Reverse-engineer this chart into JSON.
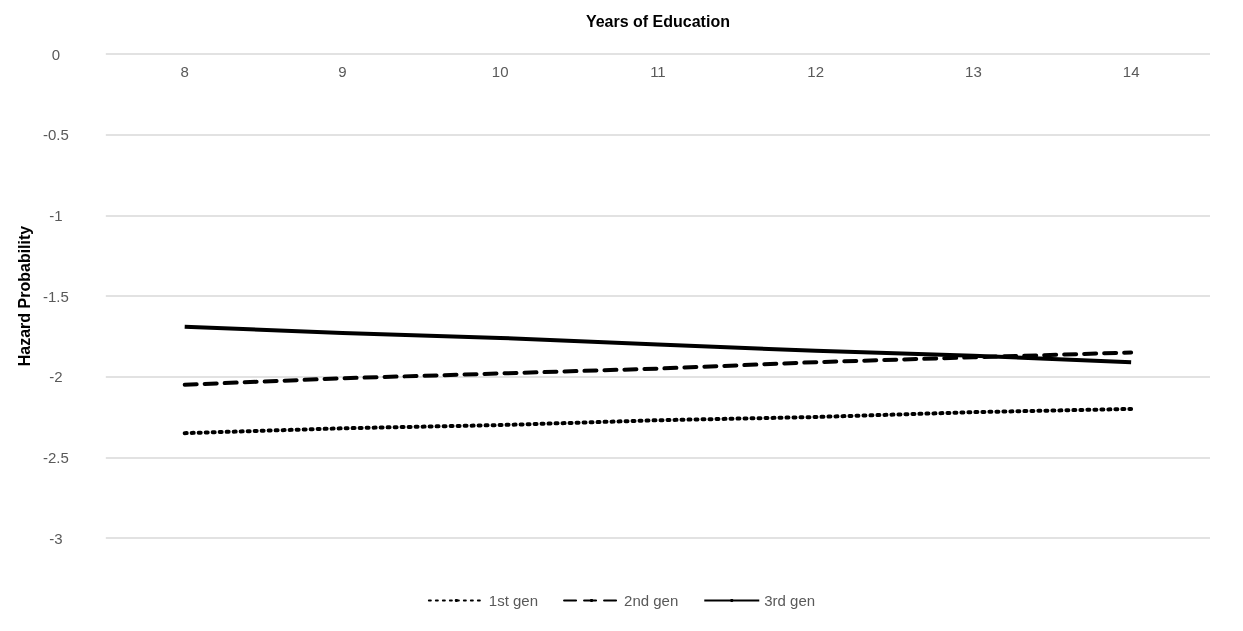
{
  "chart_data": {
    "type": "line",
    "xlabel": "Years of Education",
    "ylabel": "Hazard Probability",
    "categories": [
      "8",
      "9",
      "10",
      "11",
      "12",
      "13",
      "14"
    ],
    "ylim": [
      -3,
      0
    ],
    "yticks": [
      -3,
      -2.5,
      -2,
      -1.5,
      -1,
      -0.5,
      0
    ],
    "grid": "y",
    "legend": "bottom",
    "marker": "none",
    "series": [
      {
        "name": "1st gen",
        "color": "#000000",
        "line_style": "dotted",
        "values": [
          -2.35,
          -2.32,
          -2.3,
          -2.27,
          -2.25,
          -2.22,
          -2.2
        ]
      },
      {
        "name": "2nd gen",
        "color": "#000000",
        "line_style": "dashed",
        "values": [
          -2.05,
          -2.01,
          -1.98,
          -1.95,
          -1.91,
          -1.88,
          -1.85
        ]
      },
      {
        "name": "3rd gen",
        "color": "#000000",
        "line_style": "solid",
        "values": [
          -1.69,
          -1.73,
          -1.76,
          -1.8,
          -1.84,
          -1.87,
          -1.91
        ]
      }
    ]
  }
}
